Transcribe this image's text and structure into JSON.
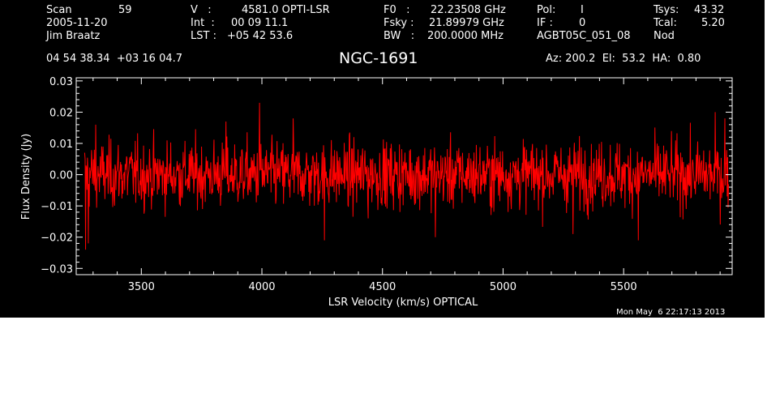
{
  "header": {
    "scan_label": "Scan",
    "scan_value": "59",
    "date": "2005-11-20",
    "observer": "Jim Braatz",
    "v_label": "V   :",
    "v_value": "4581.0 OPTI-LSR",
    "int_label": "Int  :",
    "int_value": "00 09 11.1",
    "lst_label": "LST :",
    "lst_value": "+05 42 53.6",
    "f0_label": "F0   :",
    "f0_value": "22.23508 GHz",
    "fsky_label": "Fsky :",
    "fsky_value": "21.89979 GHz",
    "bw_label": "BW   :",
    "bw_value": "200.0000 MHz",
    "pol_label": "Pol:",
    "pol_value": "I",
    "if_label": "IF :",
    "if_value": "0",
    "project": "AGBT05C_051_08",
    "tsys_label": "Tsys:",
    "tsys_value": "43.32",
    "tcal_label": "Tcal:",
    "tcal_value": "5.20",
    "mode": "Nod",
    "coords": "04 54 38.34  +03 16 04.7",
    "source": "NGC-1691",
    "az_el_ha": "Az: 200.2  El:  53.2  HA:  0.80"
  },
  "footer": {
    "timestamp": "Mon May  6 22:17:13 2013"
  },
  "chart_data": {
    "type": "line",
    "title": "NGC-1691",
    "xlabel": "LSR Velocity (km/s) OPTICAL",
    "ylabel": "Flux Density (Jy)",
    "xlim": [
      3230,
      5950
    ],
    "ylim": [
      -0.032,
      0.031
    ],
    "xticks": [
      3500,
      4000,
      4500,
      5000,
      5500
    ],
    "yticks": [
      -0.03,
      -0.02,
      -0.01,
      0.0,
      0.01,
      0.02,
      0.03
    ],
    "ytick_labels": [
      "−0.03",
      "−0.02",
      "−0.01",
      "0.00",
      "0.01",
      "0.02",
      "0.03"
    ],
    "series": [
      {
        "color": "#ff0000",
        "x_range": [
          3265,
          5935
        ],
        "n_points": 1400,
        "noise_rms_jy": 0.0062,
        "mean_jy": 0.0,
        "notable_points": [
          {
            "x": 3268,
            "y": -0.024
          },
          {
            "x": 3280,
            "y": -0.022
          },
          {
            "x": 3310,
            "y": 0.016
          },
          {
            "x": 3850,
            "y": 0.017
          },
          {
            "x": 3990,
            "y": 0.023
          },
          {
            "x": 4130,
            "y": 0.018
          },
          {
            "x": 4260,
            "y": -0.021
          },
          {
            "x": 4440,
            "y": -0.014
          },
          {
            "x": 4720,
            "y": -0.02
          },
          {
            "x": 5290,
            "y": -0.019
          },
          {
            "x": 5560,
            "y": -0.021
          },
          {
            "x": 5880,
            "y": 0.02
          },
          {
            "x": 5920,
            "y": 0.018
          }
        ]
      }
    ],
    "grid": false,
    "legend": "none"
  }
}
